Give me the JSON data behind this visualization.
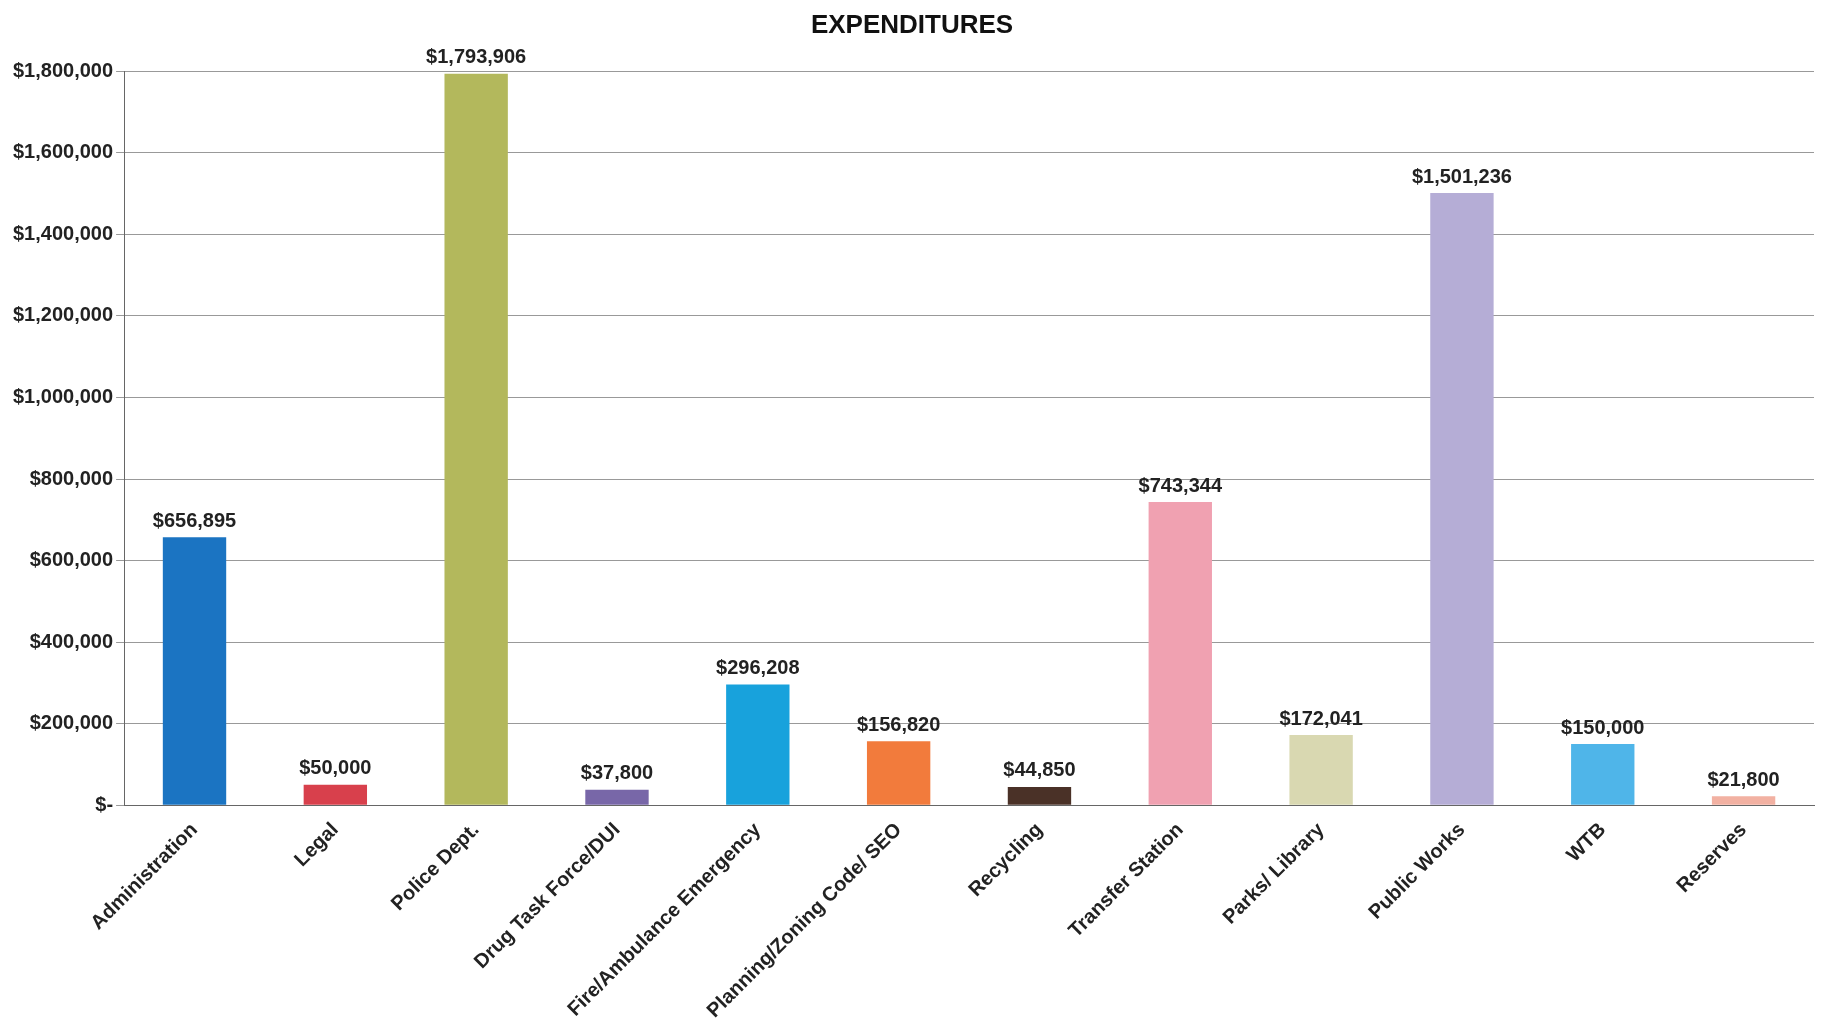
{
  "chart_data": {
    "type": "bar",
    "title": "EXPENDITURES",
    "categories": [
      "Administration",
      "Legal",
      "Police Dept.",
      "Drug Task Force/DUI",
      "Fire/Ambulance Emergency",
      "Planning/Zoning Code/ SEO",
      "Recycling",
      "Transfer Station",
      "Parks/ Library",
      "Public Works",
      "WTB",
      "Reserves"
    ],
    "values": [
      656895,
      50000,
      1793906,
      37800,
      296208,
      156820,
      44850,
      743344,
      172041,
      1501236,
      150000,
      21800
    ],
    "colors": [
      "#1b74c2",
      "#d8404c",
      "#b3b85c",
      "#7867a8",
      "#18a2dc",
      "#f27b3c",
      "#4a3127",
      "#f0a1b1",
      "#d9d8b1",
      "#b5add6",
      "#4fb5e9",
      "#f2b1a2"
    ],
    "value_labels": [
      "$656,895",
      "$50,000",
      "$1,793,906",
      "$37,800",
      "$296,208",
      "$156,820",
      "$44,850",
      "$743,344",
      "$172,041",
      "$1,501,236",
      "$150,000",
      "$21,800"
    ],
    "ylim": [
      0,
      1800000
    ],
    "yticks": [
      {
        "value": 0,
        "label": "$-"
      },
      {
        "value": 200000,
        "label": "$200,000"
      },
      {
        "value": 400000,
        "label": "$400,000"
      },
      {
        "value": 600000,
        "label": "$600,000"
      },
      {
        "value": 800000,
        "label": "$800,000"
      },
      {
        "value": 1000000,
        "label": "$1,000,000"
      },
      {
        "value": 1200000,
        "label": "$1,200,000"
      },
      {
        "value": 1400000,
        "label": "$1,400,000"
      },
      {
        "value": 1600000,
        "label": "$1,600,000"
      },
      {
        "value": 1800000,
        "label": "$1,800,000"
      }
    ],
    "grid": "y",
    "legend": false
  }
}
